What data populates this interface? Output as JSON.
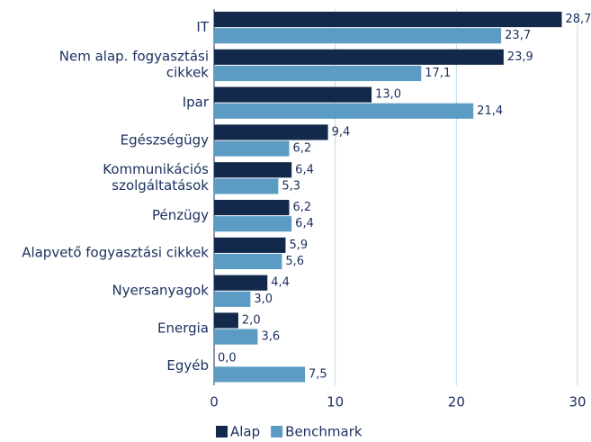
{
  "chart_data": {
    "type": "barh",
    "categories": [
      "IT",
      "Nem alap. fogyasztási\ncikkek",
      "Ipar",
      "Egészségügy",
      "Kommunikációs\nszolgáltatások",
      "Pénzügy",
      "Alapvető fogyasztási cikkek",
      "Nyersanyagok",
      "Energia",
      "Egyéb"
    ],
    "series": [
      {
        "name": "Alap",
        "color": "#13294b",
        "values": [
          28.7,
          23.9,
          13.0,
          9.4,
          6.4,
          6.2,
          5.9,
          4.4,
          2.0,
          0.0
        ],
        "value_labels": [
          "28,7",
          "23,9",
          "13,0",
          "9,4",
          "6,4",
          "6,2",
          "5,9",
          "4,4",
          "2,0",
          "0,0"
        ]
      },
      {
        "name": "Benchmark",
        "color": "#5b9bc4",
        "values": [
          23.7,
          17.1,
          21.4,
          6.2,
          5.3,
          6.4,
          5.6,
          3.0,
          3.6,
          7.5
        ],
        "value_labels": [
          "23,7",
          "17,1",
          "21,4",
          "6,2",
          "5,3",
          "6,4",
          "5,6",
          "3,0",
          "3,6",
          "7,5"
        ]
      }
    ],
    "xlim": [
      0,
      30
    ],
    "xticks": [
      0,
      10,
      20,
      30
    ],
    "grid": true,
    "legend": "bottom"
  }
}
